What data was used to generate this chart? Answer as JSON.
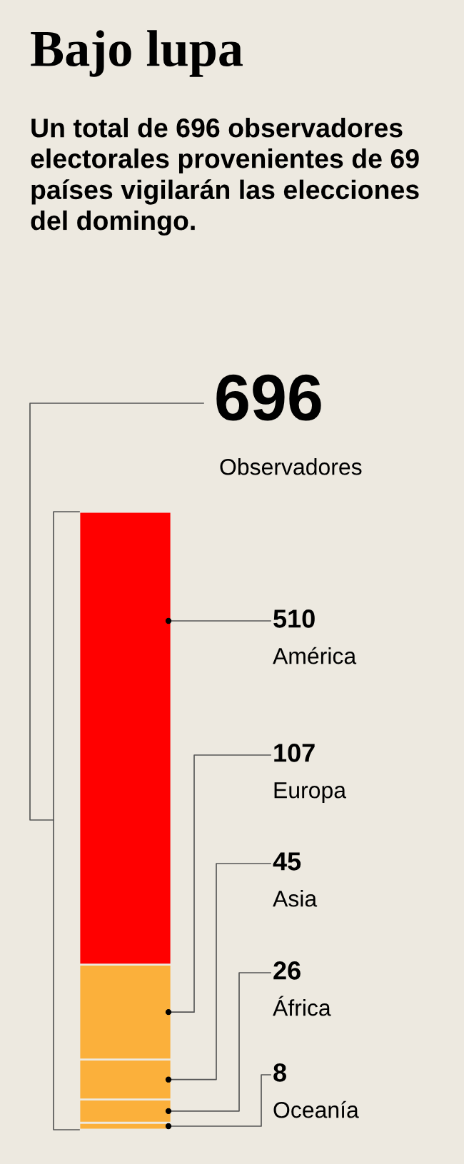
{
  "chart_data": {
    "type": "bar",
    "stacked": true,
    "title": "Bajo lupa",
    "subtitle": "Un total de 696 observadores electorales provenientes de 69 países vigilarán las elecciones del domingo.",
    "categories": [
      null
    ],
    "series": [
      {
        "name": "Oceanía",
        "color": "#fbb03b",
        "values": [
          8
        ],
        "value_labels": [
          "8"
        ]
      },
      {
        "name": "África",
        "color": "#fbb03b",
        "values": [
          26
        ],
        "value_labels": [
          "26"
        ]
      },
      {
        "name": "Asia",
        "color": "#fbb03b",
        "values": [
          45
        ],
        "value_labels": [
          "45"
        ]
      },
      {
        "name": "Europa",
        "color": "#fbb03b",
        "values": [
          107
        ],
        "value_labels": [
          "107"
        ]
      },
      {
        "name": "América",
        "color": "#ff0000",
        "values": [
          510
        ],
        "value_labels": [
          "510"
        ]
      }
    ],
    "totals": [
      "696"
    ],
    "annotations": [
      "Observadores"
    ],
    "legend": false
  }
}
